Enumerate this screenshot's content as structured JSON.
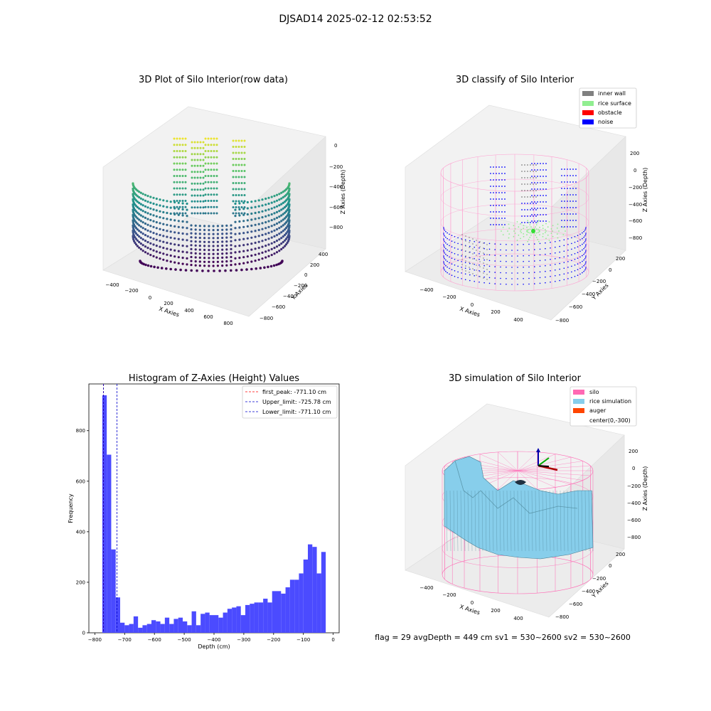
{
  "figure_title": "DJSAD14 2025-02-12 02:53:52",
  "footer_text": "flag = 29  avgDepth = 449 cm  sv1 = 530~2600  sv2 = 530~2600",
  "colors": {
    "hist_bar": "#4b4bff",
    "first_peak_line": "#ff0000",
    "limit_line": "#0000cc",
    "silo": "#ff69b4",
    "rice_simulation": "#87ceeb",
    "auger": "#ff4500",
    "inner_wall": "#808080",
    "rice_surface": "#90ee90",
    "obstacle": "#ff0000",
    "noise": "#0000ff"
  },
  "chart_data": [
    {
      "type": "scatter3d",
      "title": "3D Plot of Silo Interior(row data)",
      "xlabel": "X Axies",
      "ylabel": "Y Axies",
      "zlabel": "Z Axies (Depth)",
      "x_ticks": [
        "−400",
        "−200",
        "0",
        "200",
        "400",
        "600",
        "800"
      ],
      "y_ticks": [
        "400",
        "200",
        "0",
        "−200",
        "−400",
        "−600",
        "−800"
      ],
      "z_ticks": [
        "0",
        "−200",
        "−400",
        "−600",
        "−800"
      ],
      "colormap": "viridis",
      "z_range": [
        -800,
        0
      ]
    },
    {
      "type": "scatter3d",
      "title": "3D classify of Silo Interior",
      "xlabel": "X Axies",
      "ylabel": "Y Axies",
      "zlabel": "Z Axies (Depth)",
      "x_ticks": [
        "−400",
        "−200",
        "0",
        "200",
        "400"
      ],
      "y_ticks": [
        "200",
        "0",
        "−200",
        "−400",
        "−600",
        "−800"
      ],
      "z_ticks": [
        "200",
        "0",
        "−200",
        "−400",
        "−600",
        "−800"
      ],
      "legend": [
        "inner wall",
        "rice surface",
        "obstacle",
        "noise"
      ],
      "legend_position": "top-right"
    },
    {
      "type": "bar",
      "title": "Histogram of Z-Axies (Height) Values",
      "xlabel": "Depth (cm)",
      "ylabel": "Frequency",
      "x_ticks": [
        -800,
        -700,
        -600,
        -500,
        -400,
        -300,
        -200,
        -100,
        0
      ],
      "x_tick_labels": [
        "−800",
        "−700",
        "−600",
        "−500",
        "−400",
        "−300",
        "−200",
        "−100",
        "0"
      ],
      "y_ticks": [
        0,
        200,
        400,
        600,
        800
      ],
      "xlim": [
        -820,
        20
      ],
      "ylim": [
        0,
        985
      ],
      "bin_start": -775,
      "bin_width": 15,
      "values": [
        940,
        705,
        330,
        140,
        40,
        30,
        35,
        65,
        20,
        30,
        35,
        50,
        45,
        35,
        60,
        35,
        55,
        60,
        45,
        30,
        85,
        30,
        75,
        80,
        70,
        70,
        60,
        80,
        95,
        100,
        105,
        70,
        110,
        115,
        120,
        120,
        135,
        120,
        165,
        165,
        155,
        180,
        210,
        210,
        235,
        290,
        350,
        340,
        235,
        320
      ],
      "lines": [
        {
          "label": "first_peak: -771.10 cm",
          "x": -771.1,
          "style": "dashed",
          "color_key": "first_peak_line"
        },
        {
          "label": "Upper_limit: -725.78 cm",
          "x": -725.78,
          "style": "dashed",
          "color_key": "limit_line"
        },
        {
          "label": "Lower_limit: -771.10 cm",
          "x": -771.1,
          "style": "dashed",
          "color_key": "limit_line"
        }
      ],
      "legend_position": "top-right"
    },
    {
      "type": "surface3d",
      "title": "3D simulation of Silo Interior",
      "xlabel": "X Axies",
      "ylabel": "Y Axies",
      "zlabel": "Z Axies (Depth)",
      "x_ticks": [
        "−400",
        "−200",
        "0",
        "200",
        "400"
      ],
      "y_ticks": [
        "200",
        "0",
        "−200",
        "−400",
        "−600",
        "−800"
      ],
      "z_ticks": [
        "200",
        "0",
        "−200",
        "−400",
        "−600",
        "−800"
      ],
      "legend": [
        "silo",
        "rice simulation",
        "auger",
        "center(0,-300)"
      ],
      "legend_position": "top-right"
    }
  ]
}
